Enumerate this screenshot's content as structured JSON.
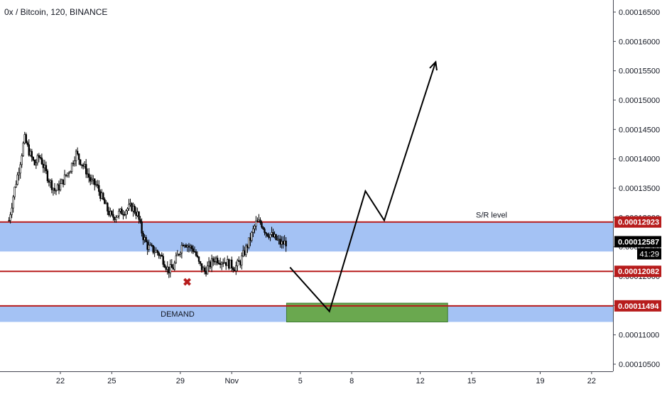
{
  "header": {
    "title": "0x / Bitcoin, 120, BINANCE"
  },
  "chart_data": {
    "type": "candlestick",
    "title": "0x / Bitcoin, 120, BINANCE",
    "symbol": "0x / Bitcoin",
    "interval": "120",
    "exchange": "BINANCE",
    "y_axis": {
      "position": "right",
      "ylim": [
        0.000102,
        0.000168
      ],
      "ticks": [
        "0.00010500",
        "0.00011000",
        "0.00011500",
        "0.00012000",
        "0.00012500",
        "0.00013000",
        "0.00013500",
        "0.00014000",
        "0.00014500",
        "0.00015000",
        "0.00015500",
        "0.00016000",
        "0.00016500"
      ]
    },
    "x_axis": {
      "ticks": [
        {
          "label": "22",
          "day": 22
        },
        {
          "label": "25",
          "day": 25
        },
        {
          "label": "29",
          "day": 29
        },
        {
          "label": "Nov",
          "day": 32
        },
        {
          "label": "5",
          "day": 36
        },
        {
          "label": "8",
          "day": 39
        },
        {
          "label": "12",
          "day": 43
        },
        {
          "label": "15",
          "day": 46
        },
        {
          "label": "19",
          "day": 50
        },
        {
          "label": "22",
          "day": 53
        }
      ]
    },
    "price_path": [
      [
        19.0,
        0.0001295
      ],
      [
        19.3,
        0.0001345
      ],
      [
        19.6,
        0.0001385
      ],
      [
        19.9,
        0.0001435
      ],
      [
        20.2,
        0.000141
      ],
      [
        20.5,
        0.000139
      ],
      [
        20.8,
        0.0001405
      ],
      [
        21.1,
        0.000138
      ],
      [
        21.4,
        0.000136
      ],
      [
        21.7,
        0.0001345
      ],
      [
        22.0,
        0.0001355
      ],
      [
        22.3,
        0.000137
      ],
      [
        22.6,
        0.0001385
      ],
      [
        22.9,
        0.000141
      ],
      [
        23.2,
        0.0001395
      ],
      [
        23.5,
        0.000138
      ],
      [
        23.8,
        0.000136
      ],
      [
        24.1,
        0.0001355
      ],
      [
        24.4,
        0.0001335
      ],
      [
        24.7,
        0.0001315
      ],
      [
        25.0,
        0.00013
      ],
      [
        25.3,
        0.0001305
      ],
      [
        25.6,
        0.000131
      ],
      [
        25.9,
        0.0001315
      ],
      [
        26.2,
        0.0001318
      ],
      [
        26.5,
        0.0001305
      ],
      [
        26.8,
        0.000127
      ],
      [
        27.1,
        0.000125
      ],
      [
        27.4,
        0.0001245
      ],
      [
        27.7,
        0.000124
      ],
      [
        28.0,
        0.0001228
      ],
      [
        28.3,
        0.000121
      ],
      [
        28.6,
        0.0001215
      ],
      [
        28.9,
        0.000124
      ],
      [
        29.2,
        0.000126
      ],
      [
        29.5,
        0.000125
      ],
      [
        29.8,
        0.0001245
      ],
      [
        30.1,
        0.000122
      ],
      [
        30.4,
        0.0001208
      ],
      [
        30.7,
        0.0001218
      ],
      [
        31.0,
        0.000123
      ],
      [
        31.3,
        0.0001228
      ],
      [
        31.6,
        0.0001225
      ],
      [
        31.9,
        0.000122
      ],
      [
        32.2,
        0.0001215
      ],
      [
        32.5,
        0.0001225
      ],
      [
        32.8,
        0.0001245
      ],
      [
        33.1,
        0.0001265
      ],
      [
        33.4,
        0.000129
      ],
      [
        33.7,
        0.0001292
      ],
      [
        34.0,
        0.0001275
      ],
      [
        34.3,
        0.000127
      ],
      [
        34.6,
        0.0001262
      ],
      [
        34.9,
        0.0001255
      ],
      [
        35.2,
        0.0001258
      ]
    ],
    "zones": [
      {
        "label": "S/R level",
        "type": "resistance-support",
        "upper": 0.00012923,
        "lower": 0.0001242
      },
      {
        "label": "DEMAND",
        "type": "demand",
        "upper": 0.00011494,
        "lower": 0.0001122
      }
    ],
    "levels": [
      {
        "price_label": "0.00012923",
        "value": 0.00012923,
        "color": "#b71c1c"
      },
      {
        "price_label": "0.00012082",
        "value": 0.00012082,
        "color": "#b71c1c"
      },
      {
        "price_label": "0.00011494",
        "value": 0.00011494,
        "color": "#b71c1c"
      }
    ],
    "current_price": {
      "label": "0.00012587",
      "value": 0.00012587,
      "countdown": "41:29"
    },
    "projection": {
      "path": [
        [
          35.4,
          0.0001215
        ],
        [
          37.7,
          0.000114
        ],
        [
          39.8,
          0.0001345
        ],
        [
          40.9,
          0.0001295
        ],
        [
          43.9,
          0.0001565
        ]
      ],
      "arrow": true
    },
    "target_box": {
      "x0": 35.2,
      "x1": 44.6,
      "low": 0.0001122,
      "high": 0.0001154,
      "color": "#6aa84f"
    },
    "marker": {
      "symbol": "✖",
      "day": 29.4,
      "value": 0.000119,
      "color": "#b71c1c"
    },
    "colors": {
      "zone_fill": "#a4c2f4",
      "level_line": "#b71c1c",
      "candle": "#000000",
      "label_bg": "#b71c1c",
      "label_text": "#ffffff",
      "current_bg": "#000000"
    }
  }
}
